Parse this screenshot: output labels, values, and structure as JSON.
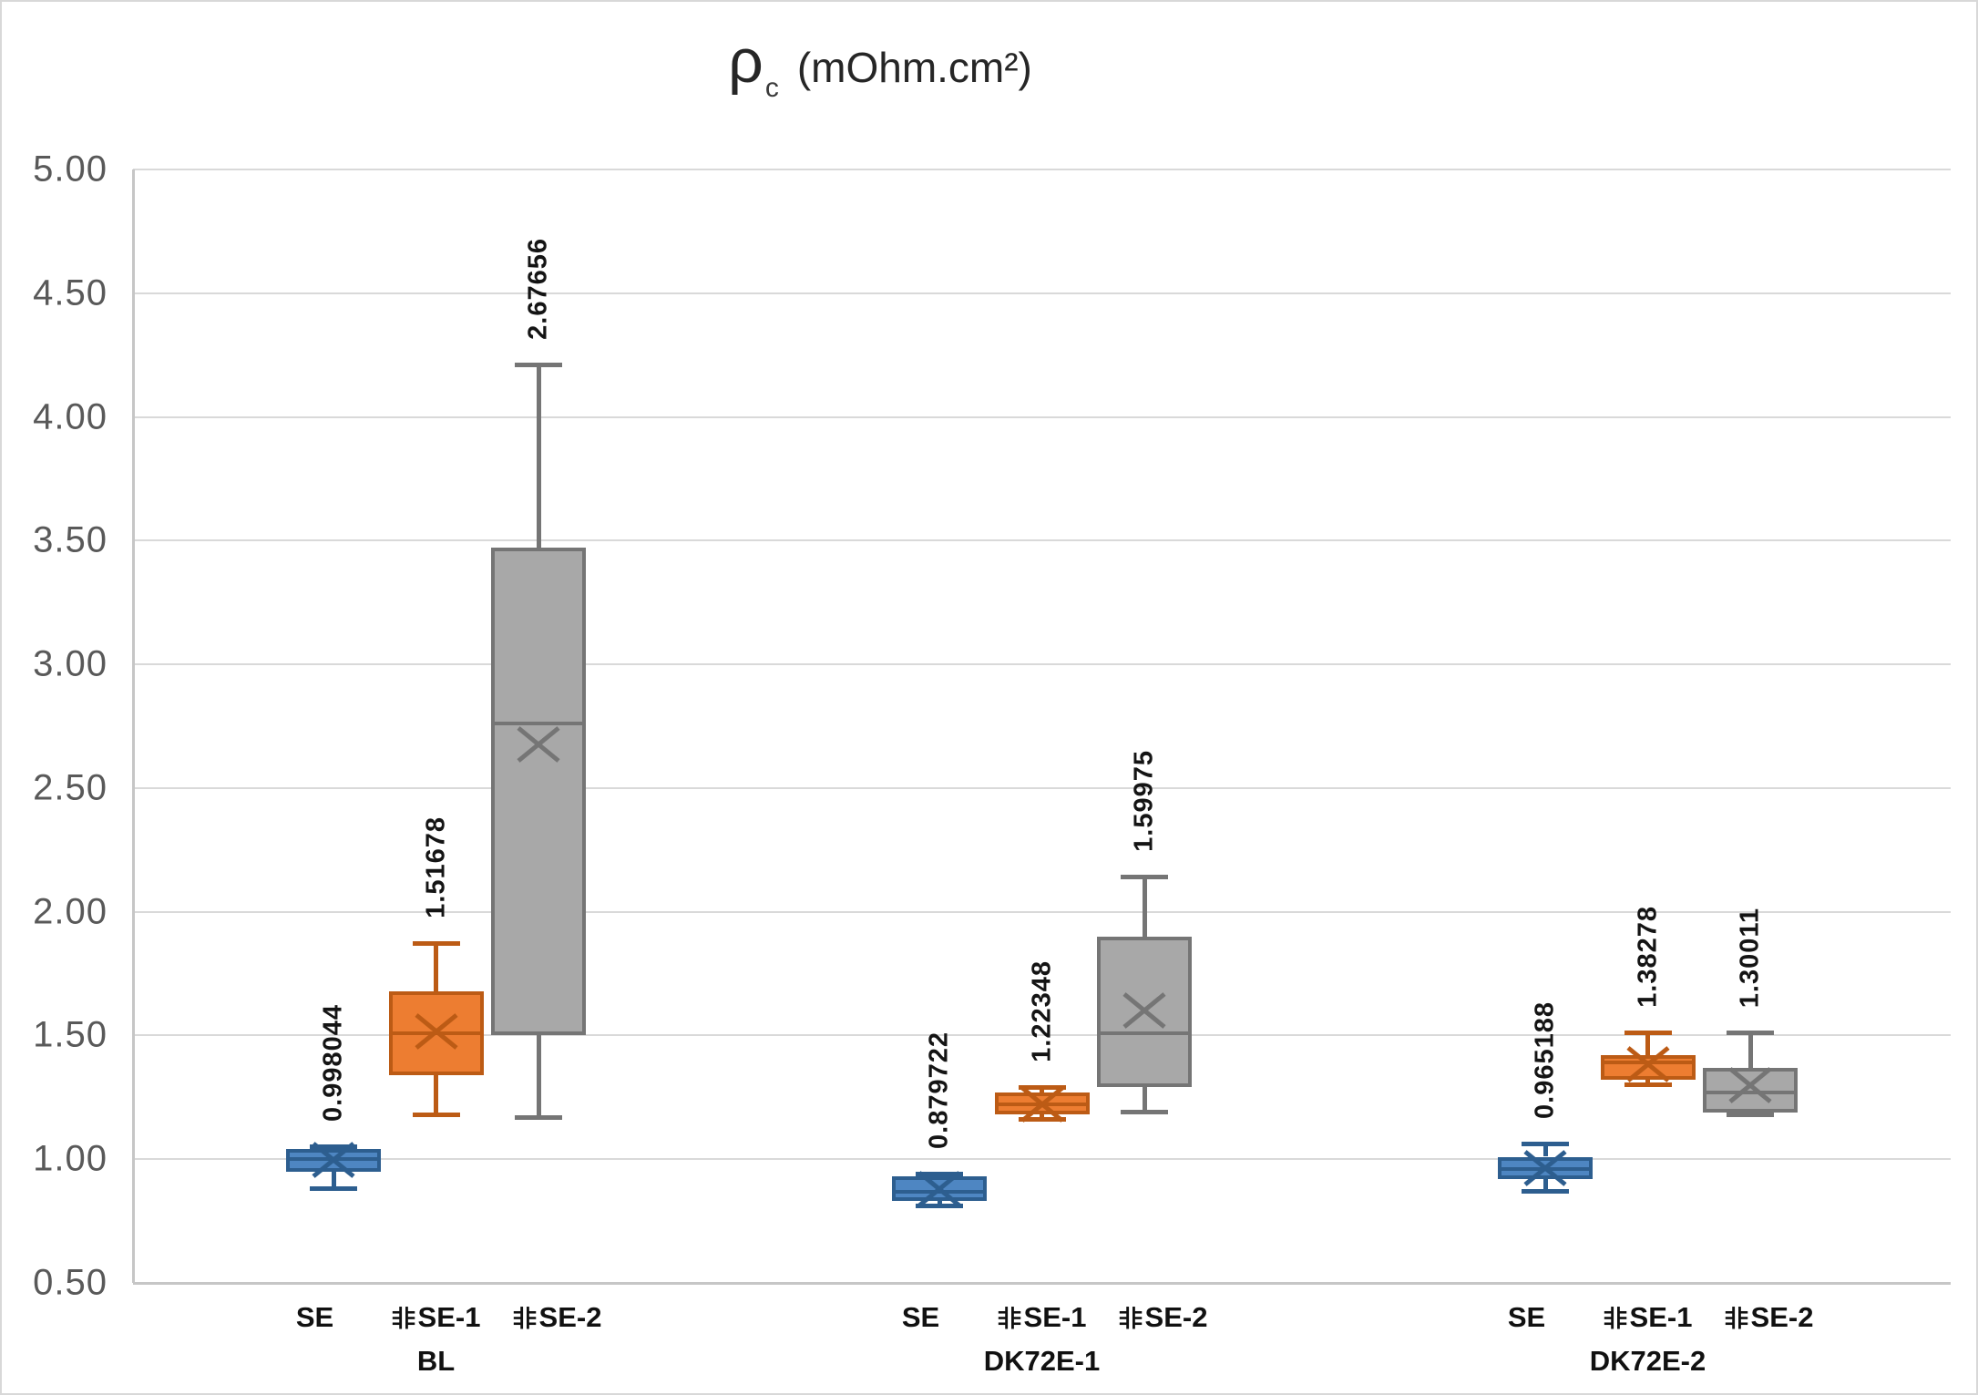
{
  "chart_data": {
    "type": "boxplot",
    "title": {
      "symbol": "ρ",
      "subscript": "c",
      "units": "(mOhm.cm²)"
    },
    "y_axis": {
      "min": 0.5,
      "max": 5.0,
      "tick_step": 0.5,
      "ticks": [
        "5.00",
        "4.50",
        "4.00",
        "3.50",
        "3.00",
        "2.50",
        "2.00",
        "1.50",
        "1.00",
        "0.50"
      ]
    },
    "x_axis": {
      "series_labels": [
        "SE",
        "非SE-1",
        "非SE-2"
      ],
      "group_labels": [
        "BL",
        "DK72E-1",
        "DK72E-2"
      ]
    },
    "legend": "none",
    "grid": "horizontal",
    "series_colors": [
      {
        "name": "SE",
        "fill": "#4E86C2",
        "stroke": "#2D5E8F"
      },
      {
        "name": "非SE-1",
        "fill": "#ED7D31",
        "stroke": "#BC5B15"
      },
      {
        "name": "非SE-2",
        "fill": "#A8A8A8",
        "stroke": "#757575"
      }
    ],
    "groups": [
      {
        "label": "BL",
        "boxes": [
          {
            "series": "SE",
            "min": 0.88,
            "q1": 0.95,
            "median": 1.0,
            "q3": 1.04,
            "max": 1.05,
            "mean": 0.998044,
            "mean_label": "0.998044"
          },
          {
            "series": "非SE-1",
            "min": 1.18,
            "q1": 1.34,
            "median": 1.51,
            "q3": 1.68,
            "max": 1.87,
            "mean": 1.51678,
            "mean_label": "1.51678"
          },
          {
            "series": "非SE-2",
            "min": 1.17,
            "q1": 1.5,
            "median": 2.76,
            "q3": 3.47,
            "max": 4.21,
            "mean": 2.67656,
            "mean_label": "2.67656"
          }
        ]
      },
      {
        "label": "DK72E-1",
        "boxes": [
          {
            "series": "SE",
            "min": 0.81,
            "q1": 0.83,
            "median": 0.87,
            "q3": 0.93,
            "max": 0.94,
            "mean": 0.879722,
            "mean_label": "0.879722"
          },
          {
            "series": "非SE-1",
            "min": 1.16,
            "q1": 1.18,
            "median": 1.22,
            "q3": 1.27,
            "max": 1.29,
            "mean": 1.22348,
            "mean_label": "1.22348"
          },
          {
            "series": "非SE-2",
            "min": 1.19,
            "q1": 1.29,
            "median": 1.51,
            "q3": 1.9,
            "max": 2.14,
            "mean": 1.59975,
            "mean_label": "1.59975"
          }
        ]
      },
      {
        "label": "DK72E-2",
        "boxes": [
          {
            "series": "SE",
            "min": 0.87,
            "q1": 0.92,
            "median": 0.96,
            "q3": 1.01,
            "max": 1.06,
            "mean": 0.965188,
            "mean_label": "0.965188"
          },
          {
            "series": "非SE-1",
            "min": 1.3,
            "q1": 1.32,
            "median": 1.39,
            "q3": 1.42,
            "max": 1.51,
            "mean": 1.38278,
            "mean_label": "1.38278"
          },
          {
            "series": "非SE-2",
            "min": 1.18,
            "q1": 1.19,
            "median": 1.27,
            "q3": 1.37,
            "max": 1.51,
            "mean": 1.30011,
            "mean_label": "1.30011"
          }
        ]
      }
    ],
    "colors": {
      "gridline": "#D9D9D9",
      "axis_line": "#C6C6C6",
      "tick_label": "#595959",
      "label_text": "#111111",
      "title_text": "#262626"
    }
  }
}
